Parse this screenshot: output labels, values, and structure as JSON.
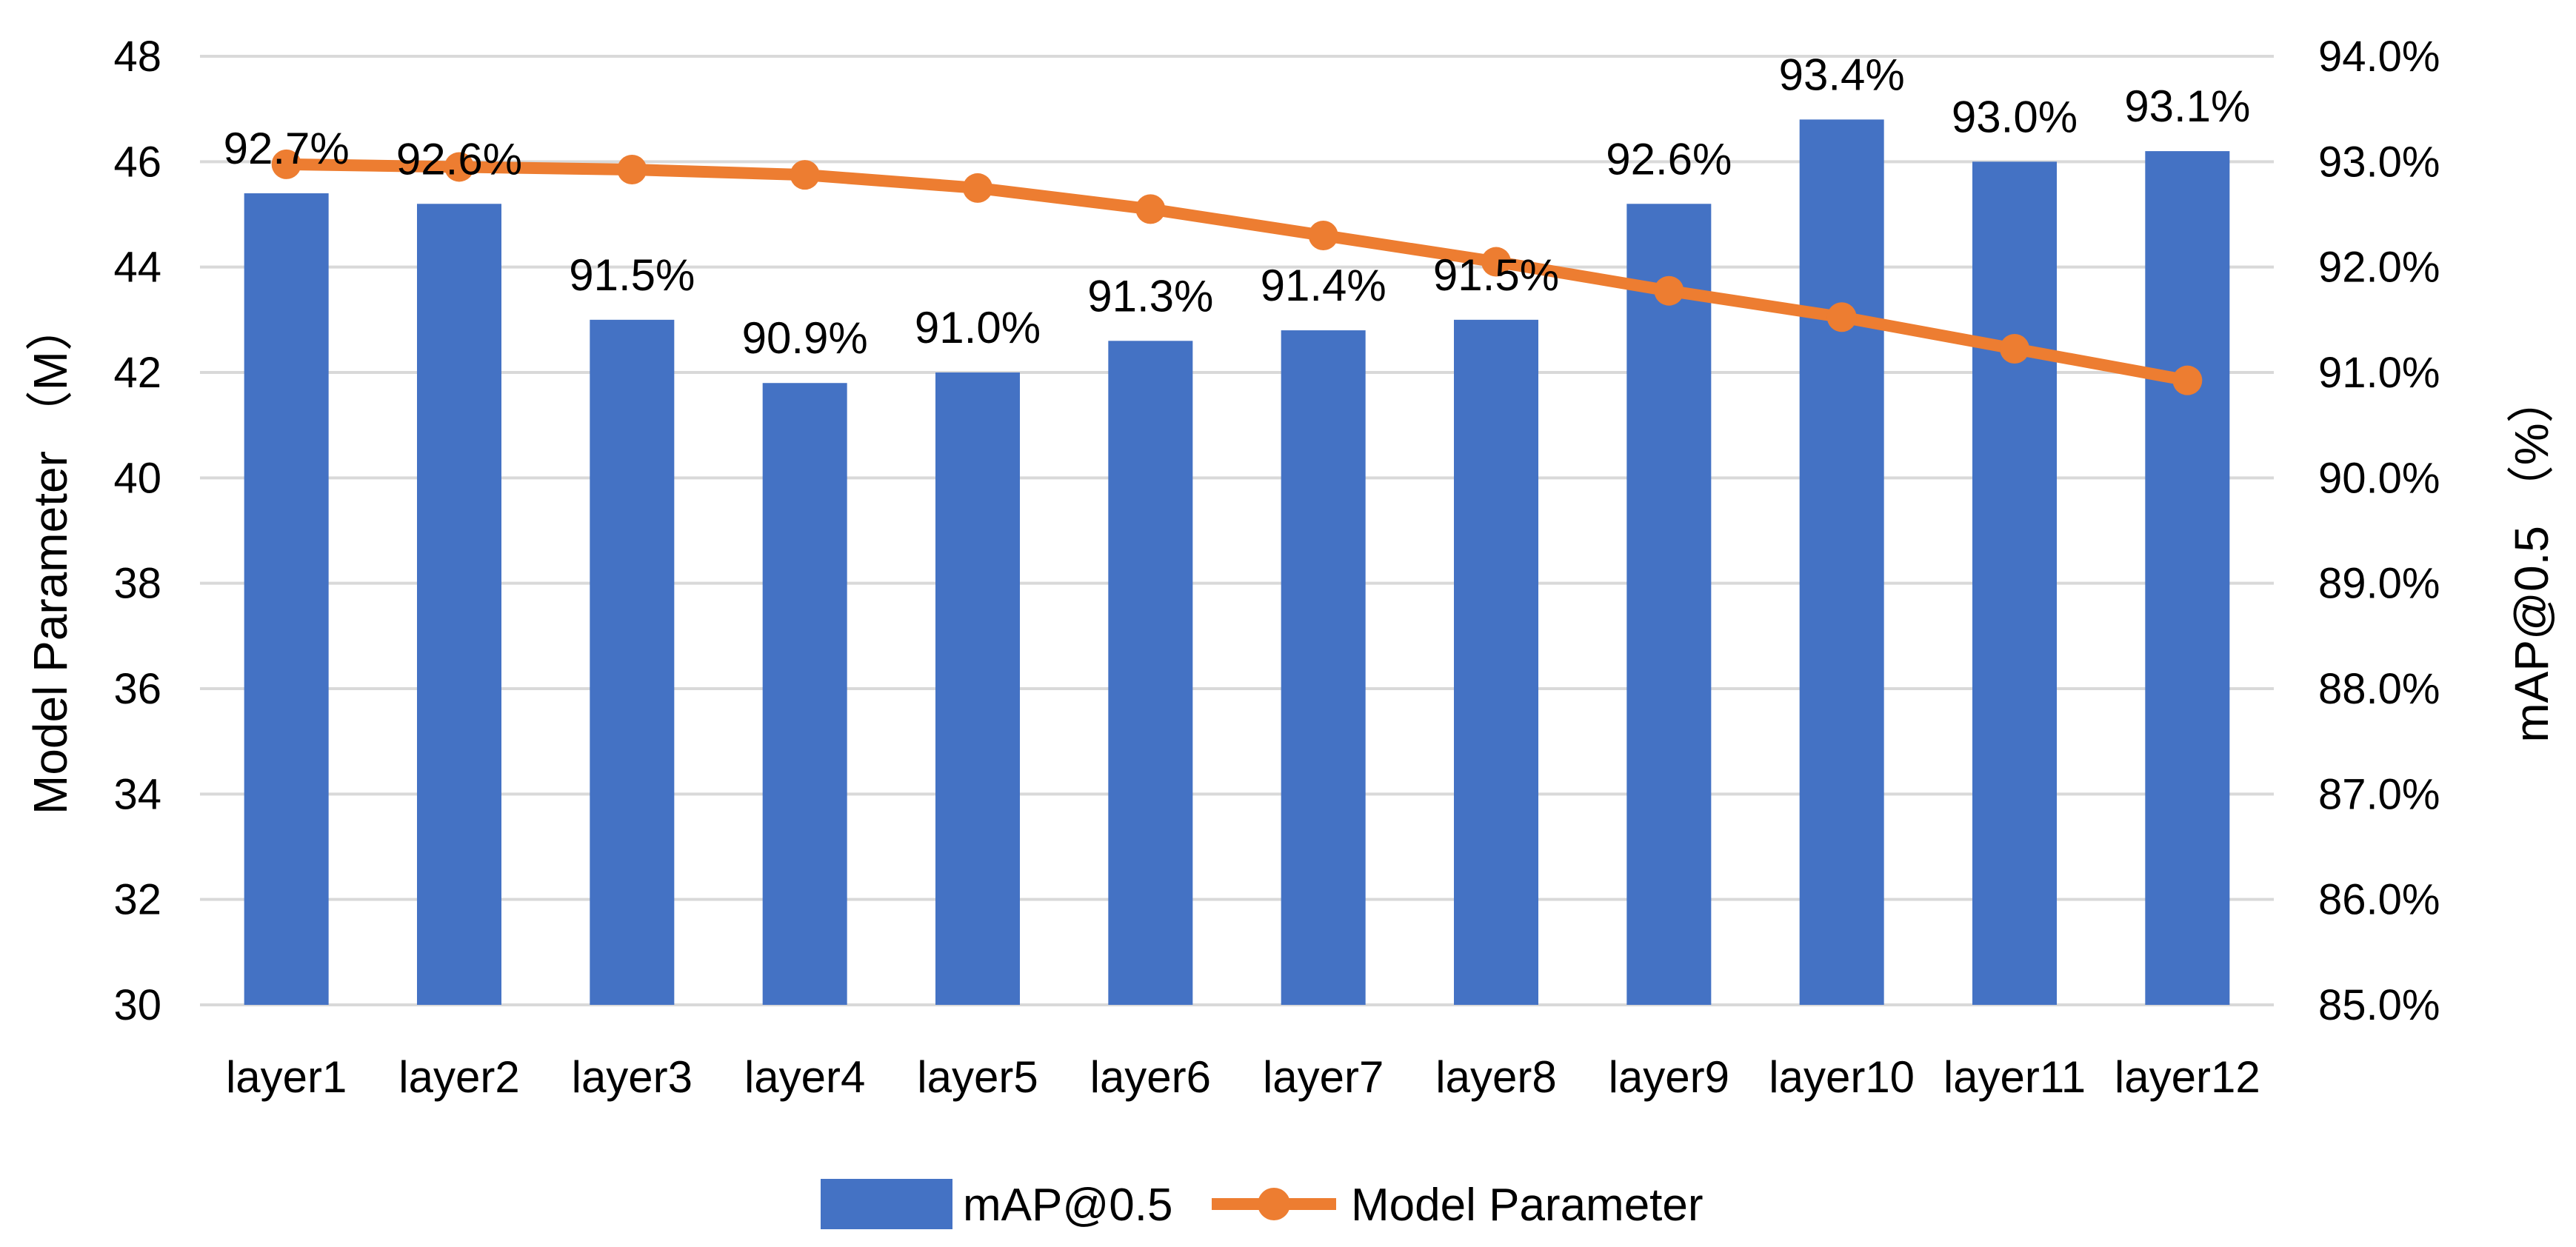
{
  "chart_data": {
    "type": "bar",
    "categories": [
      "layer1",
      "layer2",
      "layer3",
      "layer4",
      "layer5",
      "layer6",
      "layer7",
      "layer8",
      "layer9",
      "layer10",
      "layer11",
      "layer12"
    ],
    "series": [
      {
        "name": "mAP@0.5",
        "type": "bar",
        "axis": "right",
        "color": "#4472C4",
        "values": [
          92.7,
          92.6,
          91.5,
          90.9,
          91.0,
          91.3,
          91.4,
          91.5,
          92.6,
          93.4,
          93.0,
          93.1
        ],
        "labels": [
          "92.7%",
          "92.6%",
          "91.5%",
          "90.9%",
          "91.0%",
          "91.3%",
          "91.4%",
          "91.5%",
          "92.6%",
          "93.4%",
          "93.0%",
          "93.1%"
        ]
      },
      {
        "name": "Model Parameter",
        "type": "line",
        "axis": "left",
        "color": "#ED7D31",
        "values": [
          45.95,
          45.9,
          45.85,
          45.75,
          45.5,
          45.1,
          44.6,
          44.1,
          43.55,
          43.05,
          42.45,
          41.85
        ]
      }
    ],
    "ylabel_left": "Model Parameter （M）",
    "ylabel_right": "mAP@0.5 （%）",
    "ylim_left": [
      30,
      48
    ],
    "ylim_right": [
      85.0,
      94.0
    ],
    "yticks_left": [
      "30",
      "32",
      "34",
      "36",
      "38",
      "40",
      "42",
      "44",
      "46",
      "48"
    ],
    "yticks_right": [
      "85.0%",
      "86.0%",
      "87.0%",
      "88.0%",
      "89.0%",
      "90.0%",
      "91.0%",
      "92.0%",
      "93.0%",
      "94.0%"
    ],
    "grid": true,
    "legend": {
      "position": "bottom",
      "entries": [
        "mAP@0.5",
        "Model Parameter"
      ]
    }
  }
}
